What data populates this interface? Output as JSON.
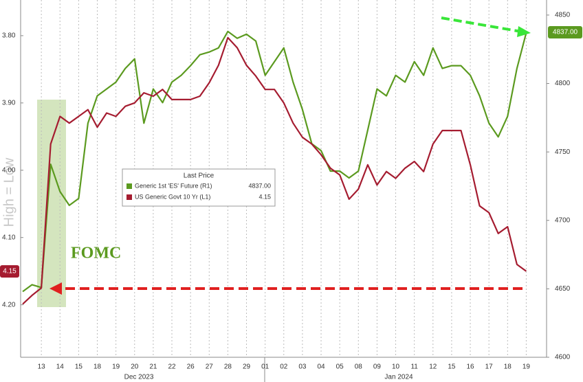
{
  "chart_data": {
    "type": "line",
    "axis_label": "High = Low",
    "annotation": "FOMC",
    "x_groups": [
      "Dec 2023",
      "Jan 2024"
    ],
    "legend_title": "Last Price",
    "categories": [
      null,
      null,
      "13",
      null,
      "14",
      null,
      "15",
      null,
      "18",
      null,
      "19",
      null,
      "20",
      null,
      "21",
      null,
      "22",
      null,
      "26",
      null,
      "27",
      null,
      "28",
      null,
      "29",
      null,
      "01",
      null,
      "02",
      null,
      "03",
      null,
      "04",
      null,
      "05",
      null,
      "08",
      null,
      "09",
      null,
      "10",
      null,
      "11",
      null,
      "12",
      null,
      "15",
      null,
      "16",
      null,
      "17",
      null,
      "18",
      null,
      "19",
      null
    ],
    "series": [
      {
        "name": "Generic 1st 'ES' Future (R1)",
        "color": "#5b9a1f",
        "axis": "y2",
        "last_price": "4837.00",
        "values": [
          4648,
          4653,
          4651,
          4741,
          4721,
          4711,
          4716,
          4771,
          4791,
          4796,
          4801,
          4811,
          4818,
          4771,
          4796,
          4786,
          4801,
          4806,
          4813,
          4821,
          4823,
          4826,
          4838,
          4833,
          4836,
          4831,
          4806,
          4816,
          4826,
          4801,
          4781,
          4756,
          4751,
          4736,
          4736,
          4731,
          4736,
          4766,
          4796,
          4791,
          4806,
          4801,
          4816,
          4806,
          4826,
          4811,
          4813,
          4813,
          4806,
          4791,
          4771,
          4761,
          4776,
          4811,
          4837,
          null
        ]
      },
      {
        "name": "US Generic Govt 10 Yr (L1)",
        "color": "#a51c30",
        "axis": "y",
        "last_price": "4.15",
        "values": [
          4.199,
          4.186,
          4.175,
          3.961,
          3.92,
          3.93,
          3.92,
          3.91,
          3.936,
          3.915,
          3.92,
          3.905,
          3.9,
          3.885,
          3.89,
          3.88,
          3.895,
          3.895,
          3.895,
          3.89,
          3.87,
          3.844,
          3.803,
          3.818,
          3.844,
          3.86,
          3.88,
          3.88,
          3.9,
          3.93,
          3.951,
          3.961,
          3.977,
          3.997,
          4.007,
          4.043,
          4.028,
          3.992,
          4.022,
          4.002,
          4.012,
          3.997,
          3.987,
          4.002,
          3.961,
          3.941,
          3.941,
          3.941,
          3.992,
          4.053,
          4.063,
          4.094,
          4.084,
          4.14,
          4.15,
          null
        ]
      }
    ],
    "ylim": [
      3.747,
      4.278
    ],
    "y_inverted": true,
    "yticks": [
      {
        "value": 3.8,
        "label": "3.80"
      },
      {
        "value": 3.9,
        "label": "3.90"
      },
      {
        "value": 4.0,
        "label": "4.00"
      },
      {
        "value": 4.1,
        "label": "4.10"
      },
      {
        "value": 4.2,
        "label": "4.20"
      }
    ],
    "y2lim": [
      4600,
      4861
    ],
    "y2ticks": [
      4600,
      4650,
      4700,
      4750,
      4800,
      4850
    ],
    "grid_x": true
  }
}
